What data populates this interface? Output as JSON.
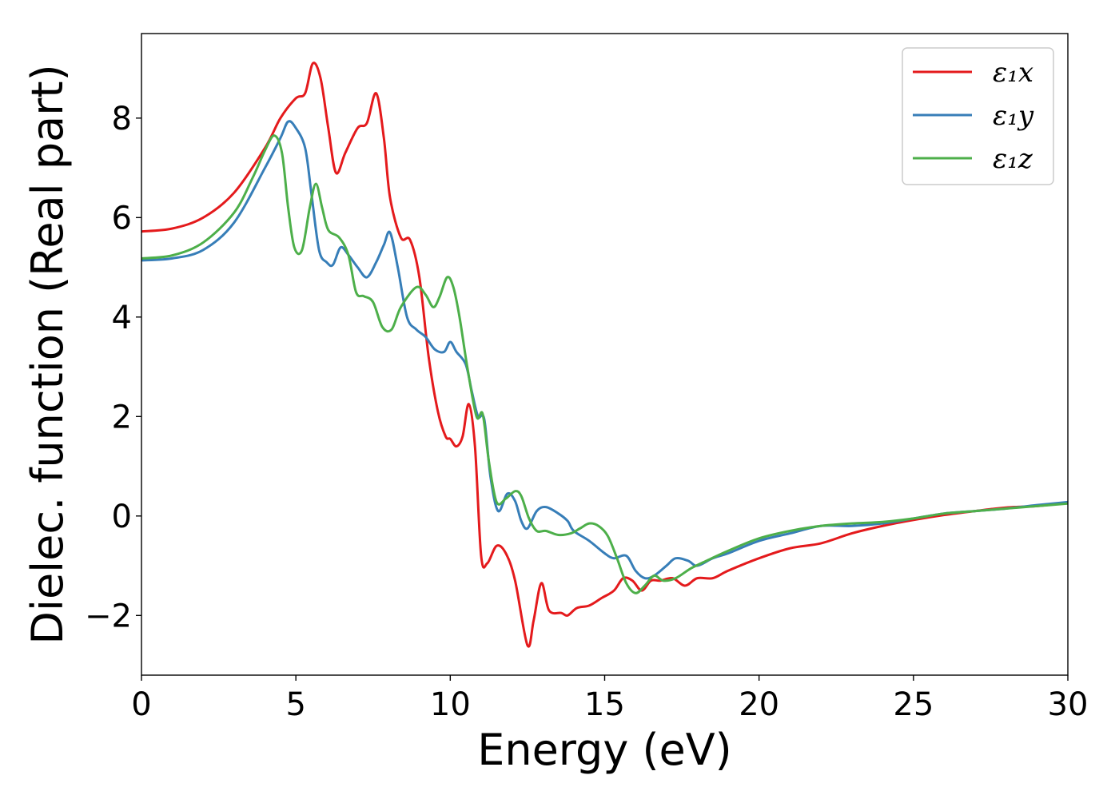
{
  "chart_data": {
    "type": "line",
    "title": "",
    "xlabel": "Energy (eV)",
    "ylabel": "Dielec. function (Real part)",
    "xlim": [
      0,
      30
    ],
    "ylim": [
      -3.2,
      9.7
    ],
    "xticks": [
      0,
      5,
      10,
      15,
      20,
      25,
      30
    ],
    "xtick_labels": [
      "0",
      "5",
      "10",
      "15",
      "20",
      "25",
      "30"
    ],
    "yticks": [
      -2,
      0,
      2,
      4,
      6,
      8
    ],
    "ytick_labels": [
      "−2",
      "0",
      "2",
      "4",
      "6",
      "8"
    ],
    "grid": false,
    "legend_position": "top-right",
    "series": [
      {
        "name": "ε₁x",
        "color": "#e41a1c",
        "points": [
          [
            0,
            5.72
          ],
          [
            1,
            5.78
          ],
          [
            2,
            6.0
          ],
          [
            3,
            6.5
          ],
          [
            4,
            7.4
          ],
          [
            4.5,
            8.0
          ],
          [
            5,
            8.4
          ],
          [
            5.3,
            8.5
          ],
          [
            5.55,
            9.1
          ],
          [
            5.8,
            8.8
          ],
          [
            6.05,
            7.8
          ],
          [
            6.3,
            6.9
          ],
          [
            6.6,
            7.3
          ],
          [
            7.0,
            7.8
          ],
          [
            7.3,
            7.9
          ],
          [
            7.6,
            8.5
          ],
          [
            7.85,
            7.6
          ],
          [
            8.05,
            6.4
          ],
          [
            8.4,
            5.6
          ],
          [
            8.7,
            5.55
          ],
          [
            9.0,
            4.8
          ],
          [
            9.3,
            3.2
          ],
          [
            9.6,
            2.1
          ],
          [
            9.85,
            1.6
          ],
          [
            10.0,
            1.55
          ],
          [
            10.2,
            1.4
          ],
          [
            10.4,
            1.6
          ],
          [
            10.6,
            2.25
          ],
          [
            10.8,
            1.4
          ],
          [
            11.0,
            -0.8
          ],
          [
            11.2,
            -0.95
          ],
          [
            11.5,
            -0.6
          ],
          [
            11.8,
            -0.75
          ],
          [
            12.1,
            -1.3
          ],
          [
            12.5,
            -2.6
          ],
          [
            12.7,
            -2.1
          ],
          [
            12.95,
            -1.35
          ],
          [
            13.2,
            -1.9
          ],
          [
            13.6,
            -1.95
          ],
          [
            13.8,
            -2.0
          ],
          [
            14.1,
            -1.85
          ],
          [
            14.5,
            -1.8
          ],
          [
            14.9,
            -1.65
          ],
          [
            15.3,
            -1.5
          ],
          [
            15.6,
            -1.25
          ],
          [
            15.9,
            -1.3
          ],
          [
            16.2,
            -1.5
          ],
          [
            16.5,
            -1.3
          ],
          [
            16.8,
            -1.3
          ],
          [
            17.2,
            -1.25
          ],
          [
            17.6,
            -1.4
          ],
          [
            18.0,
            -1.25
          ],
          [
            18.5,
            -1.25
          ],
          [
            19.0,
            -1.1
          ],
          [
            20.0,
            -0.85
          ],
          [
            21.0,
            -0.65
          ],
          [
            22.0,
            -0.55
          ],
          [
            23.0,
            -0.35
          ],
          [
            24.0,
            -0.2
          ],
          [
            25.0,
            -0.08
          ],
          [
            26.0,
            0.02
          ],
          [
            27.0,
            0.1
          ],
          [
            28.0,
            0.17
          ],
          [
            29.0,
            0.2
          ],
          [
            30.0,
            0.27
          ]
        ]
      },
      {
        "name": "ε₁y",
        "color": "#377eb8",
        "points": [
          [
            0,
            5.14
          ],
          [
            1,
            5.18
          ],
          [
            2,
            5.35
          ],
          [
            3,
            5.9
          ],
          [
            4,
            7.0
          ],
          [
            4.5,
            7.6
          ],
          [
            4.75,
            7.93
          ],
          [
            5.0,
            7.8
          ],
          [
            5.3,
            7.4
          ],
          [
            5.5,
            6.5
          ],
          [
            5.75,
            5.35
          ],
          [
            6.0,
            5.1
          ],
          [
            6.2,
            5.05
          ],
          [
            6.45,
            5.4
          ],
          [
            6.7,
            5.25
          ],
          [
            7.0,
            5.0
          ],
          [
            7.3,
            4.8
          ],
          [
            7.6,
            5.1
          ],
          [
            7.85,
            5.45
          ],
          [
            8.05,
            5.7
          ],
          [
            8.3,
            5.0
          ],
          [
            8.6,
            4.0
          ],
          [
            8.9,
            3.75
          ],
          [
            9.2,
            3.6
          ],
          [
            9.5,
            3.35
          ],
          [
            9.8,
            3.3
          ],
          [
            10.0,
            3.5
          ],
          [
            10.2,
            3.3
          ],
          [
            10.5,
            3.05
          ],
          [
            10.7,
            2.5
          ],
          [
            10.9,
            2.0
          ],
          [
            11.1,
            1.95
          ],
          [
            11.3,
            0.8
          ],
          [
            11.55,
            0.1
          ],
          [
            11.85,
            0.45
          ],
          [
            12.1,
            0.3
          ],
          [
            12.3,
            -0.1
          ],
          [
            12.5,
            -0.25
          ],
          [
            12.8,
            0.1
          ],
          [
            13.1,
            0.18
          ],
          [
            13.5,
            0.05
          ],
          [
            13.8,
            -0.1
          ],
          [
            14.0,
            -0.3
          ],
          [
            14.5,
            -0.5
          ],
          [
            15.0,
            -0.75
          ],
          [
            15.3,
            -0.85
          ],
          [
            15.7,
            -0.8
          ],
          [
            16.0,
            -1.1
          ],
          [
            16.3,
            -1.25
          ],
          [
            16.6,
            -1.2
          ],
          [
            17.0,
            -1.0
          ],
          [
            17.3,
            -0.85
          ],
          [
            17.7,
            -0.9
          ],
          [
            18.0,
            -1.0
          ],
          [
            18.5,
            -0.85
          ],
          [
            19.0,
            -0.75
          ],
          [
            20.0,
            -0.5
          ],
          [
            21.0,
            -0.35
          ],
          [
            22.0,
            -0.2
          ],
          [
            23.0,
            -0.2
          ],
          [
            24.0,
            -0.15
          ],
          [
            25.0,
            -0.05
          ],
          [
            26.0,
            0.05
          ],
          [
            27.0,
            0.1
          ],
          [
            28.0,
            0.15
          ],
          [
            29.0,
            0.22
          ],
          [
            30.0,
            0.28
          ]
        ]
      },
      {
        "name": "ε₁z",
        "color": "#4daf4a",
        "points": [
          [
            0,
            5.18
          ],
          [
            1,
            5.24
          ],
          [
            2,
            5.5
          ],
          [
            3,
            6.1
          ],
          [
            3.6,
            6.8
          ],
          [
            4.0,
            7.35
          ],
          [
            4.3,
            7.65
          ],
          [
            4.55,
            7.3
          ],
          [
            4.75,
            6.2
          ],
          [
            4.95,
            5.4
          ],
          [
            5.2,
            5.35
          ],
          [
            5.45,
            6.2
          ],
          [
            5.65,
            6.68
          ],
          [
            5.85,
            6.2
          ],
          [
            6.05,
            5.75
          ],
          [
            6.4,
            5.6
          ],
          [
            6.7,
            5.25
          ],
          [
            6.95,
            4.5
          ],
          [
            7.2,
            4.42
          ],
          [
            7.5,
            4.3
          ],
          [
            7.8,
            3.8
          ],
          [
            8.1,
            3.75
          ],
          [
            8.4,
            4.2
          ],
          [
            8.9,
            4.6
          ],
          [
            9.2,
            4.45
          ],
          [
            9.45,
            4.2
          ],
          [
            9.65,
            4.4
          ],
          [
            9.9,
            4.8
          ],
          [
            10.1,
            4.6
          ],
          [
            10.3,
            4.0
          ],
          [
            10.55,
            3.0
          ],
          [
            10.85,
            2.0
          ],
          [
            11.05,
            2.05
          ],
          [
            11.25,
            1.1
          ],
          [
            11.5,
            0.28
          ],
          [
            11.8,
            0.35
          ],
          [
            12.1,
            0.5
          ],
          [
            12.3,
            0.4
          ],
          [
            12.55,
            -0.05
          ],
          [
            12.8,
            -0.3
          ],
          [
            13.1,
            -0.3
          ],
          [
            13.5,
            -0.38
          ],
          [
            13.9,
            -0.35
          ],
          [
            14.2,
            -0.25
          ],
          [
            14.5,
            -0.15
          ],
          [
            14.8,
            -0.2
          ],
          [
            15.1,
            -0.4
          ],
          [
            15.4,
            -0.85
          ],
          [
            15.7,
            -1.35
          ],
          [
            16.0,
            -1.55
          ],
          [
            16.3,
            -1.4
          ],
          [
            16.6,
            -1.2
          ],
          [
            16.9,
            -1.3
          ],
          [
            17.3,
            -1.25
          ],
          [
            17.8,
            -1.05
          ],
          [
            18.3,
            -0.9
          ],
          [
            19.0,
            -0.7
          ],
          [
            20.0,
            -0.45
          ],
          [
            21.0,
            -0.3
          ],
          [
            22.0,
            -0.2
          ],
          [
            23.0,
            -0.15
          ],
          [
            24.0,
            -0.12
          ],
          [
            25.0,
            -0.05
          ],
          [
            26.0,
            0.05
          ],
          [
            27.0,
            0.1
          ],
          [
            28.0,
            0.15
          ],
          [
            29.0,
            0.2
          ],
          [
            30.0,
            0.25
          ]
        ]
      }
    ]
  }
}
